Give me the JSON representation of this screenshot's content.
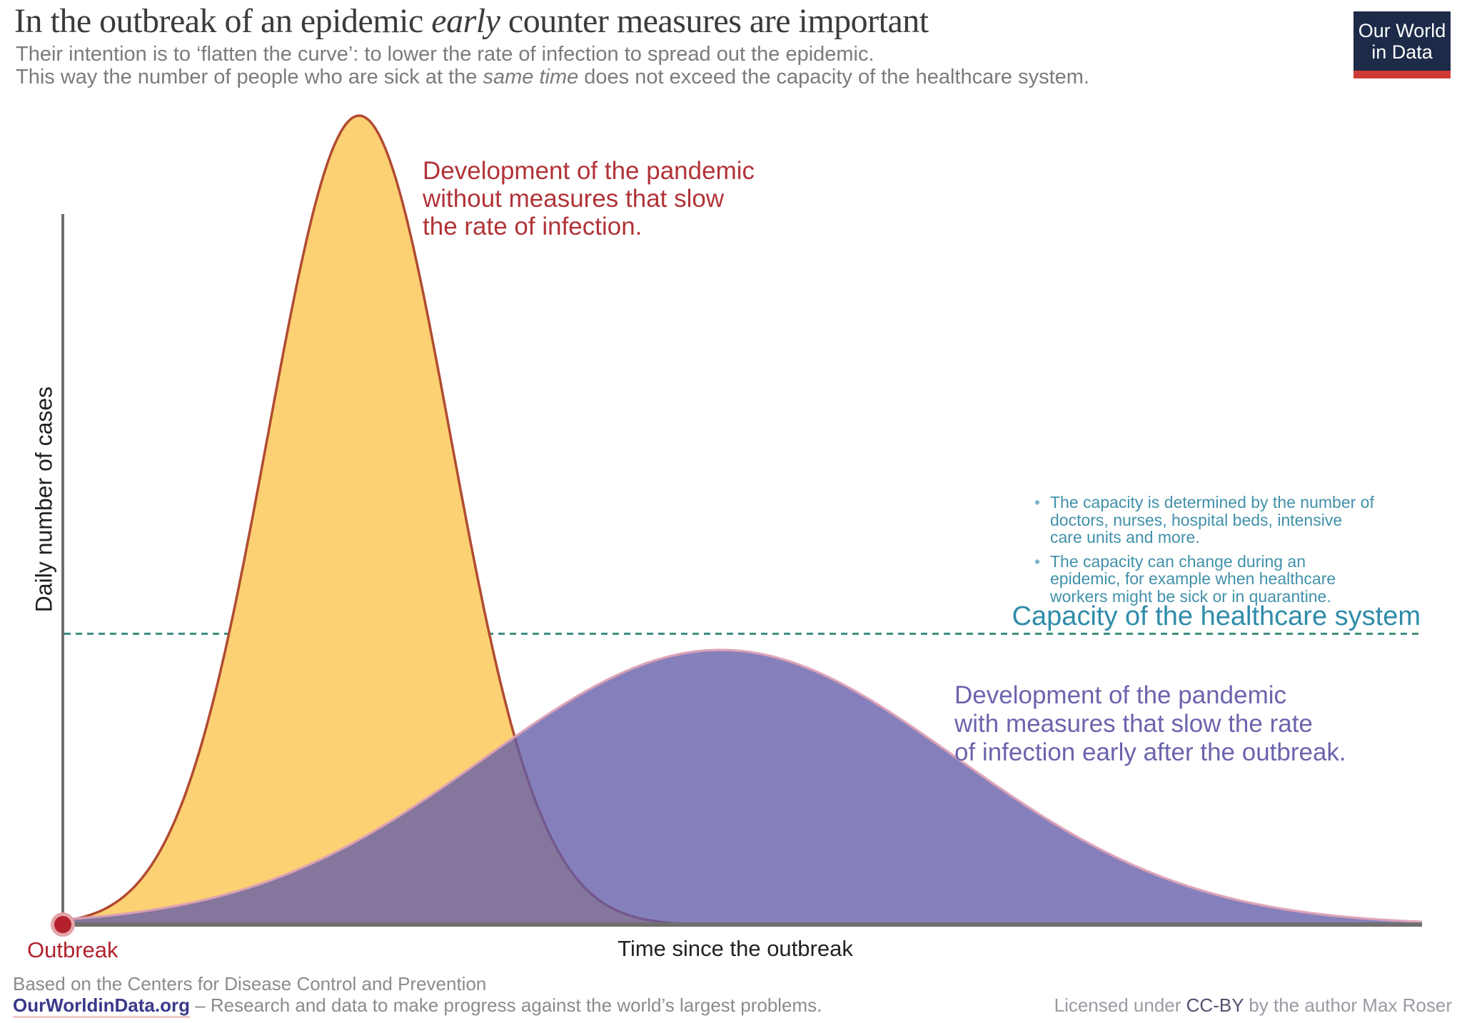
{
  "header": {
    "title": {
      "pre": "In the outbreak of an epidemic ",
      "italic": "early",
      "post": " counter measures are important"
    },
    "subtitle_line1": "Their intention is to ‘flatten the curve’: to lower the rate of infection to spread out the epidemic.",
    "subtitle_line2": {
      "pre": "This way the number of people who are sick at the ",
      "italic": "same time",
      "post": " does not exceed the capacity of the healthcare system."
    },
    "logo": {
      "line1": "Our World",
      "line2": "in Data",
      "bg_color": "#1d2b49",
      "bar_color": "#d03a34",
      "text_color": "#ffffff"
    }
  },
  "annotations": {
    "without_measures": {
      "lines": [
        "Development of the pandemic",
        "without measures that slow",
        "the rate of infection."
      ],
      "color": "#b13338"
    },
    "with_measures": {
      "lines": [
        "Development of the pandemic",
        "with measures that slow the rate",
        "of infection early after the outbreak."
      ],
      "color": "#6b64ad"
    },
    "capacity": {
      "bullets": [
        "The capacity is determined by the number of doctors, nurses, hospital beds, intensive care units and more.",
        "The capacity can change during an epidemic, for example when healthcare workers might be sick or in quarantine."
      ],
      "label": "Capacity of the healthcare system",
      "text_color": "#2f8caa",
      "bullet_text_color": "#4191aa",
      "line_color": "#3d8b7d"
    }
  },
  "axes": {
    "y_label": "Daily number of cases",
    "x_label": "Time since the outbreak",
    "origin_label": "Outbreak",
    "axis_color": "#6f6f6f",
    "outbreak_dot_color": "#b4202c"
  },
  "footer": {
    "source": "Based on the Centers for Disease Control and Prevention",
    "site": "OurWorldinData.org",
    "tagline": " – Research and data to make progress against the world’s largest problems.",
    "license_pre": "Licensed under ",
    "license_cc": "CC-BY",
    "license_post": " by the author Max Roser"
  },
  "chart_data": {
    "type": "area",
    "title": "Flatten the curve: epidemic development with vs. without counter measures",
    "xlabel": "Time since the outbreak",
    "ylabel": "Daily number of cases",
    "x_axis": "unitless time fraction 0–1 (no numeric ticks shown)",
    "ylim": [
      0,
      1
    ],
    "grid": false,
    "legend_position": "inline annotations",
    "capacity_level": 0.36,
    "x": [
      0,
      0.05,
      0.1,
      0.15,
      0.2,
      0.25,
      0.3,
      0.35,
      0.4,
      0.45,
      0.5,
      0.55,
      0.6,
      0.65,
      0.7,
      0.75,
      0.8,
      0.85,
      0.9,
      0.95,
      1.0
    ],
    "series": [
      {
        "name": "Development of the pandemic without measures that slow the rate of infection.",
        "shape": "gaussian",
        "gaussian": {
          "mean": 0.218,
          "sigma": 0.067,
          "peak": 1.0
        },
        "values": [
          0.005,
          0.044,
          0.215,
          0.601,
          0.965,
          0.893,
          0.476,
          0.146,
          0.026,
          0.003,
          0,
          0,
          0,
          0,
          0,
          0,
          0,
          0,
          0,
          0,
          0
        ],
        "fill": "#fbd173",
        "fill_opacity": 1,
        "stroke": "#b14b32"
      },
      {
        "name": "Development of the pandemic with measures that slow the rate of infection early after the outbreak.",
        "shape": "gaussian",
        "gaussian": {
          "mean": 0.484,
          "sigma": 0.174,
          "peak": 0.34
        },
        "values": [
          0.007,
          0.015,
          0.029,
          0.053,
          0.089,
          0.137,
          0.194,
          0.252,
          0.302,
          0.334,
          0.339,
          0.316,
          0.272,
          0.215,
          0.157,
          0.105,
          0.065,
          0.037,
          0.019,
          0.009,
          0.004
        ],
        "fill": "#635ca8",
        "fill_opacity": 0.78,
        "stroke": "#dda0b6"
      }
    ],
    "annotations": [
      "Capacity of the healthcare system (teal dashed horizontal line at ~0.36 of peak height)",
      "Outbreak (red dot at origin)"
    ]
  }
}
